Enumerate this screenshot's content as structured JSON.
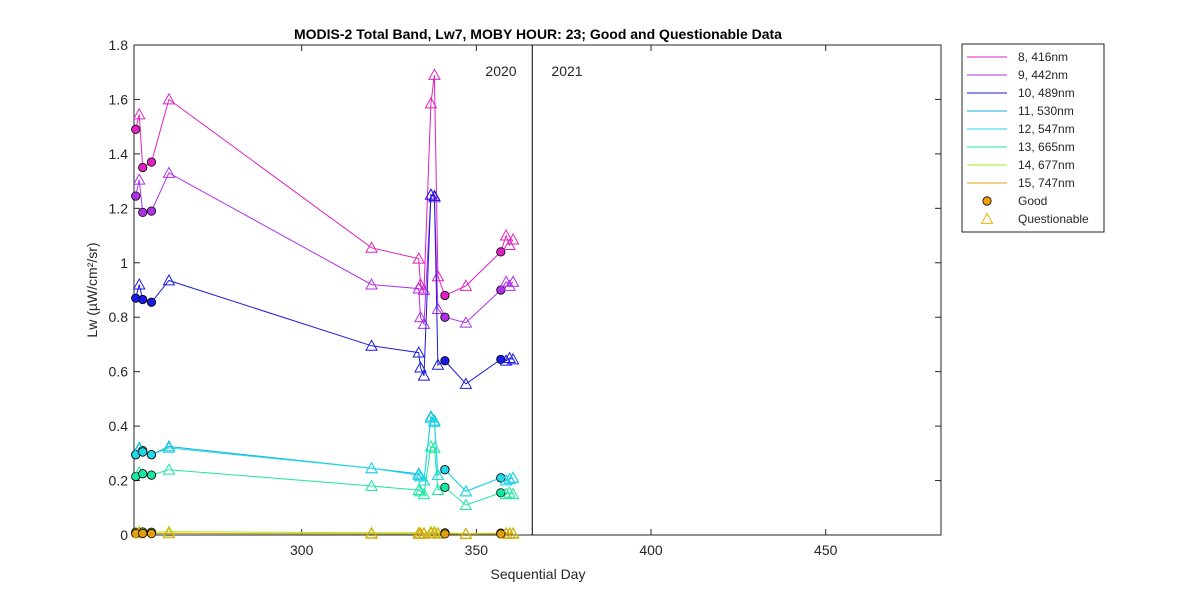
{
  "chart_data": {
    "type": "line",
    "title": "MODIS-2 Total Band,  Lw7, MOBY HOUR: 23;  Good and Questionable Data",
    "xlabel": "Sequential Day",
    "ylabel": "Lw (µW/cm²/sr)",
    "xlim": [
      252,
      483
    ],
    "ylim": [
      0,
      1.8
    ],
    "xticks": [
      300,
      350,
      400,
      450
    ],
    "yticks": [
      0,
      0.2,
      0.4,
      0.6,
      0.8,
      1,
      1.2,
      1.4,
      1.6,
      1.8
    ],
    "xtick_labels": [
      "300",
      "350",
      "400",
      "450"
    ],
    "ytick_labels": [
      "0",
      "0.2",
      "0.4",
      "0.6",
      "0.8",
      "1",
      "1.2",
      "1.4",
      "1.6",
      "1.8"
    ],
    "year_divider_x": 366,
    "annotations": [
      "2020",
      "2021"
    ],
    "grid": false,
    "legend_position": "outside-right",
    "x": [
      252.5,
      253.5,
      254.5,
      257,
      262,
      320,
      333.5,
      334,
      335,
      337,
      338,
      339,
      341,
      347,
      357,
      358.5,
      359.5,
      360.5
    ],
    "series": [
      {
        "name": "8, 416nm",
        "color": "#e020c0",
        "values": [
          1.49,
          1.545,
          1.35,
          1.37,
          1.6,
          1.055,
          1.015,
          0.92,
          0.9,
          1.585,
          1.69,
          0.95,
          0.88,
          0.915,
          1.04,
          1.1,
          1.065,
          1.085
        ],
        "quality": [
          "G",
          "Q",
          "G",
          "G",
          "Q",
          "Q",
          "Q",
          "Q",
          "Q",
          "Q",
          "Q",
          "Q",
          "G",
          "Q",
          "G",
          "Q",
          "Q",
          "Q"
        ]
      },
      {
        "name": "9, 442nm",
        "color": "#b030e8",
        "values": [
          1.245,
          1.305,
          1.185,
          1.19,
          1.33,
          0.92,
          0.905,
          0.8,
          0.775,
          1.25,
          1.24,
          0.83,
          0.8,
          0.78,
          0.9,
          0.93,
          0.915,
          0.93
        ],
        "quality": [
          "G",
          "Q",
          "G",
          "G",
          "Q",
          "Q",
          "Q",
          "Q",
          "Q",
          "Q",
          "Q",
          "Q",
          "G",
          "Q",
          "G",
          "Q",
          "Q",
          "Q"
        ]
      },
      {
        "name": "10, 489nm",
        "color": "#1a1ae0",
        "values": [
          0.87,
          0.92,
          0.865,
          0.855,
          0.935,
          0.695,
          0.67,
          0.615,
          0.585,
          1.25,
          1.245,
          0.625,
          0.64,
          0.555,
          0.645,
          0.64,
          0.65,
          0.645
        ],
        "quality": [
          "G",
          "Q",
          "G",
          "G",
          "Q",
          "Q",
          "Q",
          "Q",
          "Q",
          "Q",
          "Q",
          "Q",
          "G",
          "Q",
          "G",
          "Q",
          "Q",
          "Q"
        ]
      },
      {
        "name": "11, 530nm",
        "color": "#10b0d8",
        "values": [
          0.295,
          0.32,
          0.31,
          0.295,
          0.325,
          0.245,
          0.225,
          0.215,
          0.2,
          0.435,
          0.42,
          0.22,
          0.24,
          0.16,
          0.21,
          0.2,
          0.205,
          0.21
        ],
        "quality": [
          "G",
          "Q",
          "G",
          "G",
          "Q",
          "Q",
          "Q",
          "Q",
          "Q",
          "Q",
          "Q",
          "Q",
          "G",
          "Q",
          "G",
          "Q",
          "Q",
          "Q"
        ]
      },
      {
        "name": "12, 547nm",
        "color": "#20d8e8",
        "values": [
          0.295,
          0.315,
          0.305,
          0.295,
          0.32,
          0.245,
          0.22,
          0.215,
          0.2,
          0.43,
          0.415,
          0.22,
          0.24,
          0.16,
          0.21,
          0.2,
          0.205,
          0.21
        ],
        "quality": [
          "G",
          "Q",
          "G",
          "G",
          "Q",
          "Q",
          "Q",
          "Q",
          "Q",
          "Q",
          "Q",
          "Q",
          "G",
          "Q",
          "G",
          "Q",
          "Q",
          "Q"
        ]
      },
      {
        "name": "13, 665nm",
        "color": "#18e8a0",
        "values": [
          0.215,
          0.23,
          0.225,
          0.22,
          0.24,
          0.18,
          0.165,
          0.16,
          0.15,
          0.325,
          0.32,
          0.165,
          0.175,
          0.11,
          0.155,
          0.15,
          0.155,
          0.15
        ],
        "quality": [
          "G",
          "Q",
          "G",
          "G",
          "Q",
          "Q",
          "Q",
          "Q",
          "Q",
          "Q",
          "Q",
          "Q",
          "G",
          "Q",
          "G",
          "Q",
          "Q",
          "Q"
        ]
      },
      {
        "name": "14, 677nm",
        "color": "#a8e820",
        "values": [
          0.01,
          0.012,
          0.011,
          0.01,
          0.012,
          0.008,
          0.008,
          0.007,
          0.007,
          0.012,
          0.012,
          0.007,
          0.008,
          0.005,
          0.007,
          0.007,
          0.007,
          0.007
        ],
        "quality": [
          "G",
          "Q",
          "G",
          "G",
          "Q",
          "Q",
          "Q",
          "Q",
          "Q",
          "Q",
          "Q",
          "Q",
          "G",
          "Q",
          "G",
          "Q",
          "Q",
          "Q"
        ]
      },
      {
        "name": "15, 747nm",
        "color": "#e0a010",
        "values": [
          0.005,
          0.006,
          0.006,
          0.005,
          0.006,
          0.004,
          0.004,
          0.004,
          0.004,
          0.006,
          0.006,
          0.004,
          0.004,
          0.003,
          0.004,
          0.004,
          0.004,
          0.004
        ],
        "quality": [
          "G",
          "Q",
          "G",
          "G",
          "Q",
          "Q",
          "Q",
          "Q",
          "Q",
          "Q",
          "Q",
          "Q",
          "G",
          "Q",
          "G",
          "Q",
          "Q",
          "Q"
        ]
      }
    ],
    "legend_markers": [
      {
        "label": "Good",
        "shape": "circle",
        "color": "#f0a000"
      },
      {
        "label": "Questionable",
        "shape": "triangle",
        "color": "#f0b000"
      }
    ]
  }
}
